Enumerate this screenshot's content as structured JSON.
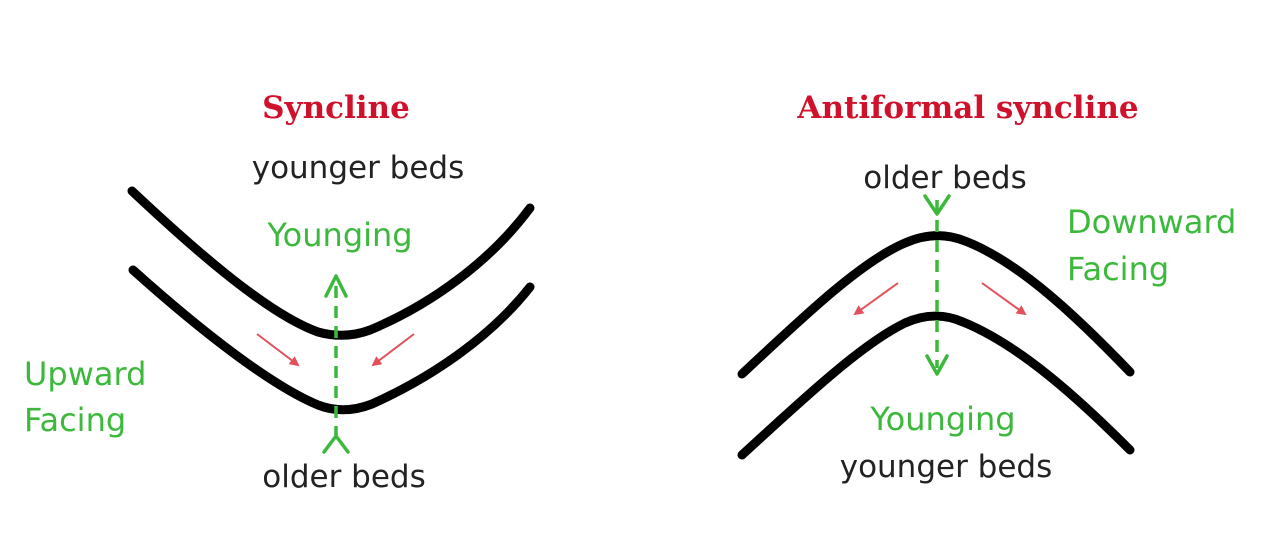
{
  "colors": {
    "title": "#d0112b",
    "text": "#222222",
    "green": "#3cb93c",
    "arrow_red": "#e3505a",
    "bed": "#000000"
  },
  "syncline": {
    "title": "Syncline",
    "top_label": "younger beds",
    "younging_label": "Younging",
    "bottom_label": "older beds",
    "facing_line1": "Upward",
    "facing_line2": "Facing"
  },
  "antiformal": {
    "title": "Antiformal syncline",
    "top_label": "older beds",
    "facing_line1": "Downward",
    "facing_line2": "Facing",
    "younging_label": "Younging",
    "bottom_label": "younger beds"
  }
}
